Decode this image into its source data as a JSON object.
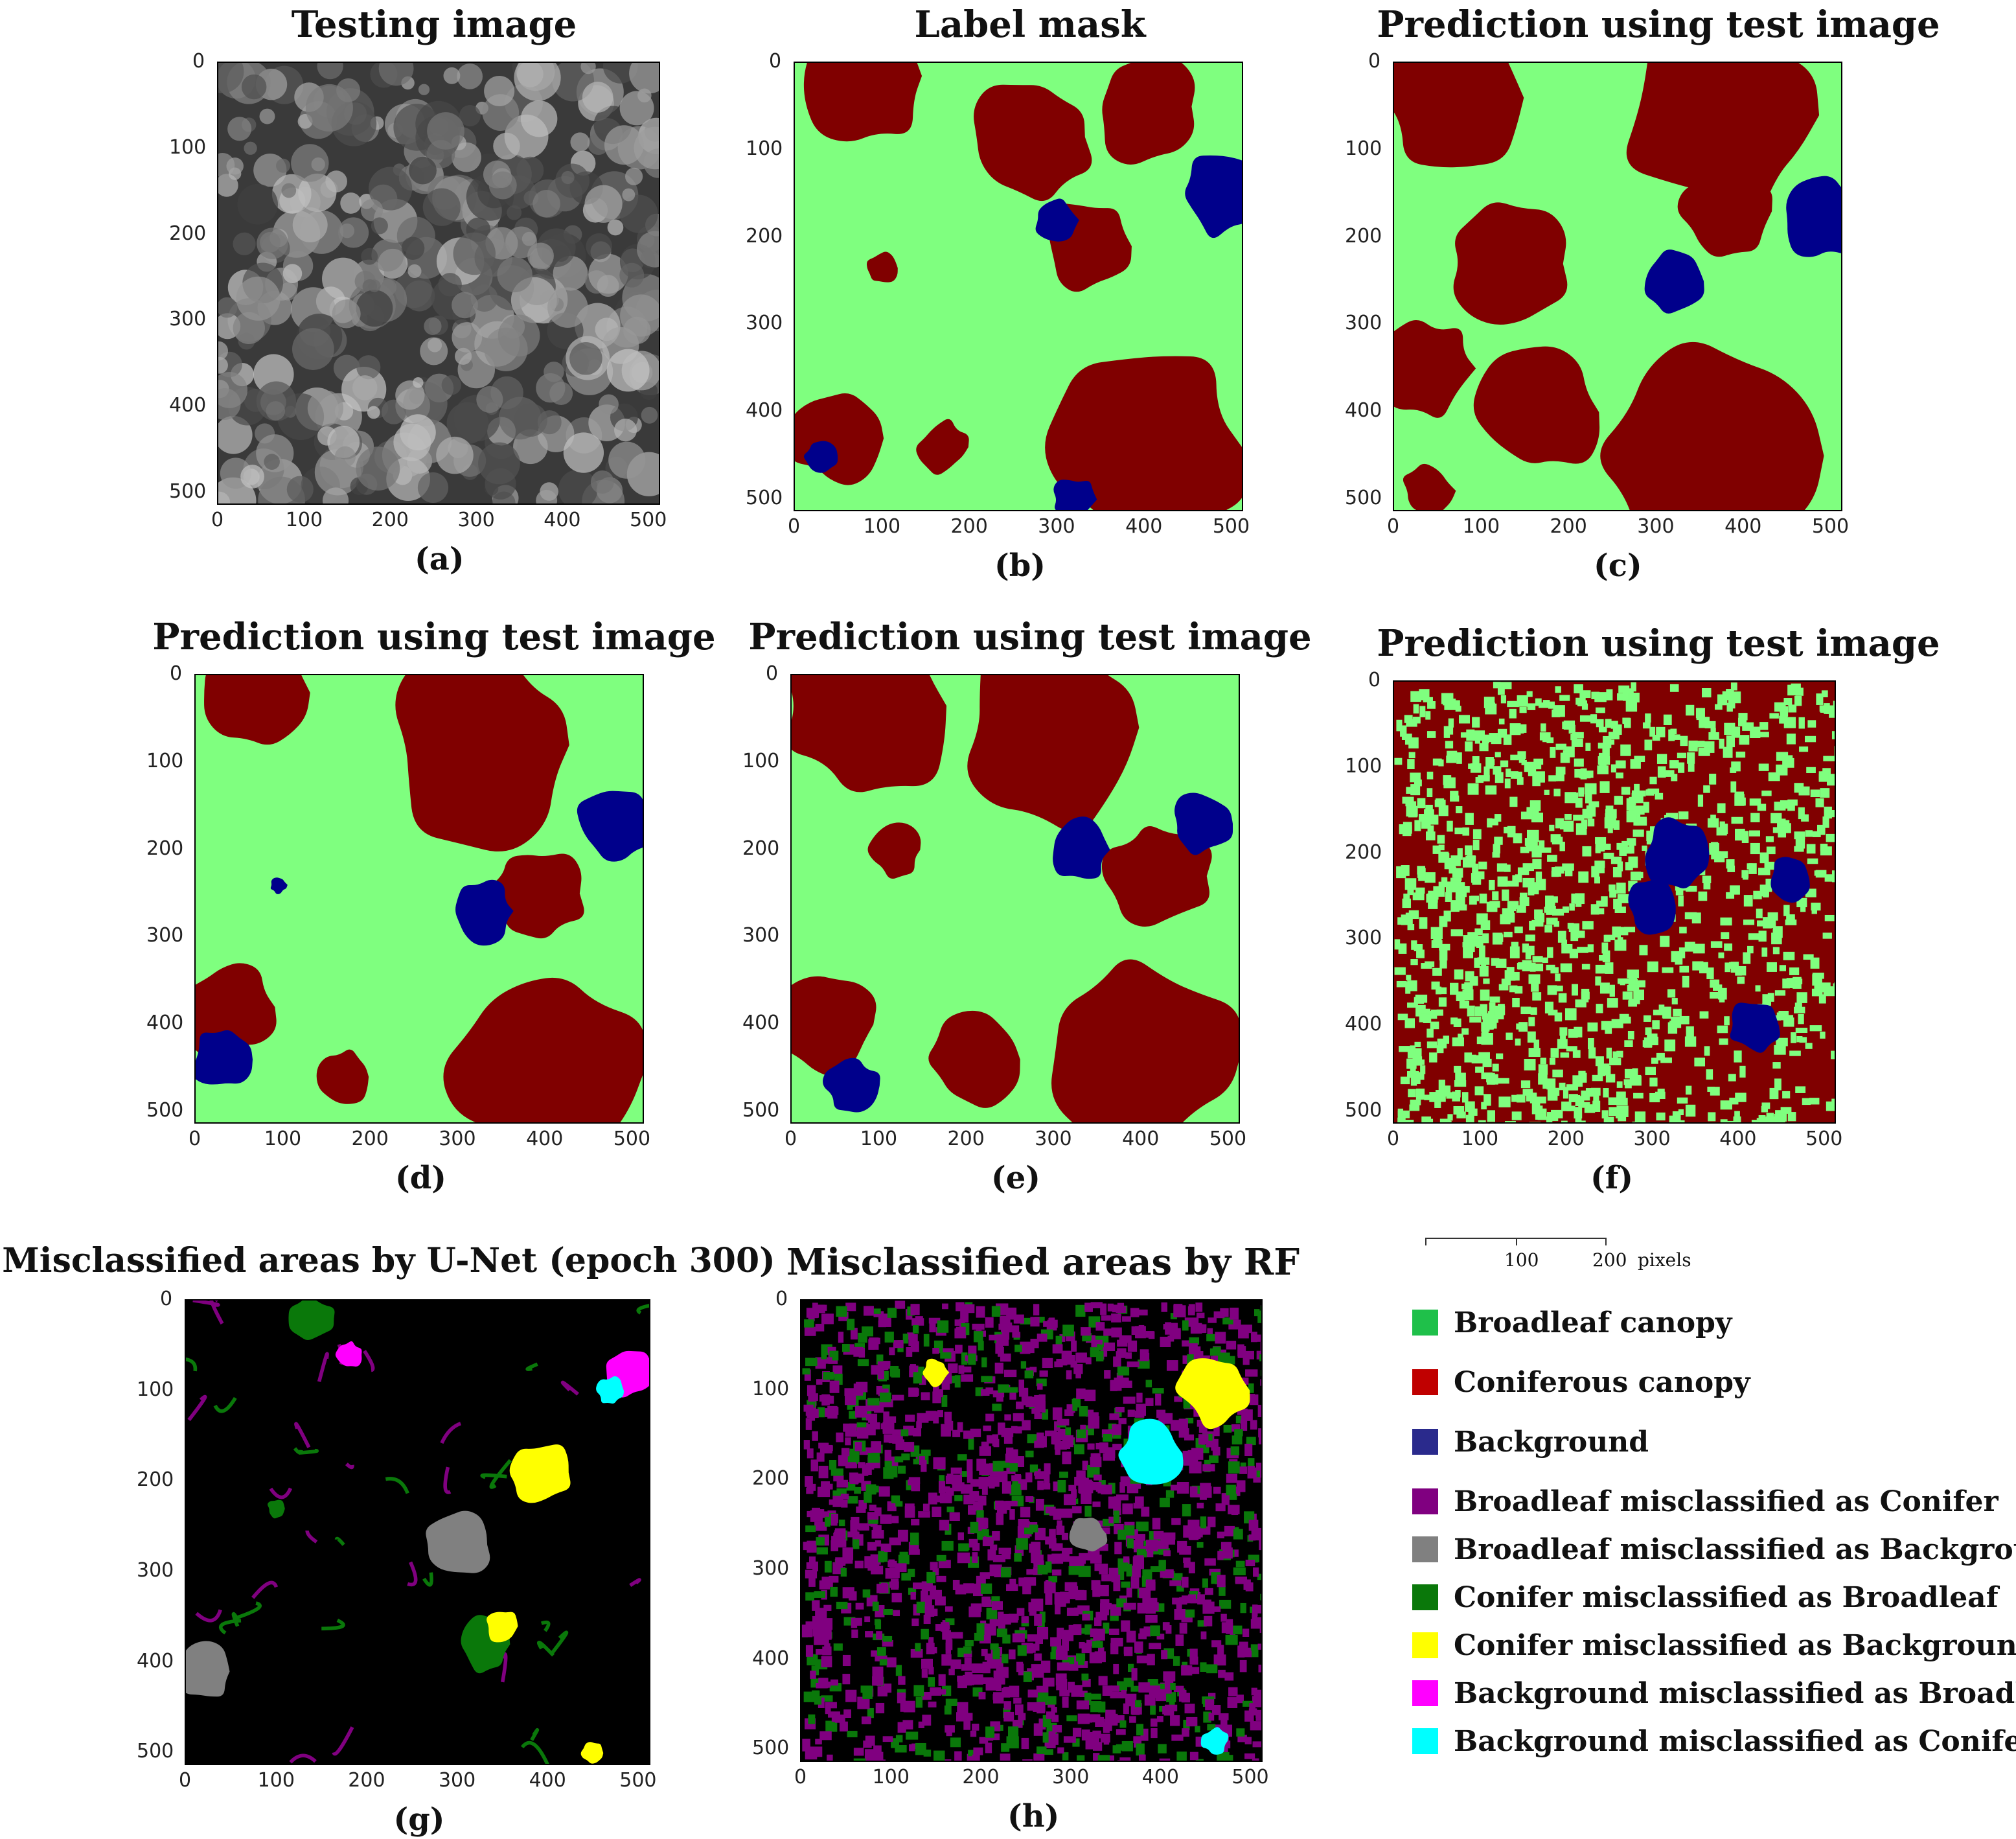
{
  "axis_ticks": [
    "0",
    "100",
    "200",
    "300",
    "400",
    "500"
  ],
  "colors": {
    "broadleaf": "#7fff7f",
    "conifer": "#800000",
    "background": "#00008b",
    "err_broad_as_conifer": "#800080",
    "err_broad_as_background": "#808080",
    "err_conifer_as_broad": "#0a780a",
    "err_conifer_as_background": "#ffff00",
    "err_background_as_broad": "#ff00ff",
    "err_background_as_conifer": "#00ffff"
  },
  "panels": [
    {
      "id": "a",
      "title": "Testing image",
      "label": "(a)",
      "kind": "gray"
    },
    {
      "id": "b",
      "title": "Label mask",
      "label": "(b)",
      "kind": "mask"
    },
    {
      "id": "c",
      "title": "Prediction using test image",
      "label": "(c)",
      "kind": "mask"
    },
    {
      "id": "d",
      "title": "Prediction using test image",
      "label": "(d)",
      "kind": "mask"
    },
    {
      "id": "e",
      "title": "Prediction using test image",
      "label": "(e)",
      "kind": "mask"
    },
    {
      "id": "f",
      "title": "Prediction using test image",
      "label": "(f)",
      "kind": "noisy"
    },
    {
      "id": "g",
      "title": "Misclassified areas by U-Net (epoch 300)",
      "label": "(g)",
      "kind": "error"
    },
    {
      "id": "h",
      "title": "Misclassified areas by RF",
      "label": "(h)",
      "kind": "error-noisy"
    }
  ],
  "scalebar": {
    "ticks": [
      "100",
      "200"
    ],
    "unit": "pixels"
  },
  "legend": [
    {
      "label": "Broadleaf canopy",
      "color": "#1fc04a"
    },
    {
      "label": "Coniferous canopy",
      "color": "#c00000"
    },
    {
      "label": "Background",
      "color": "#2a2a8c"
    },
    {
      "label": "Broadleaf misclassified as Conifer",
      "color": "#800080"
    },
    {
      "label": "Broadleaf misclassified as Background",
      "color": "#808080"
    },
    {
      "label": "Conifer misclassified as Broadleaf",
      "color": "#0a780a"
    },
    {
      "label": "Conifer misclassified as Background",
      "color": "#ffff00"
    },
    {
      "label": "Background misclassified as Broadleaf",
      "color": "#ff00ff"
    },
    {
      "label": "Background misclassified as Conifer",
      "color": "#00ffff"
    }
  ]
}
